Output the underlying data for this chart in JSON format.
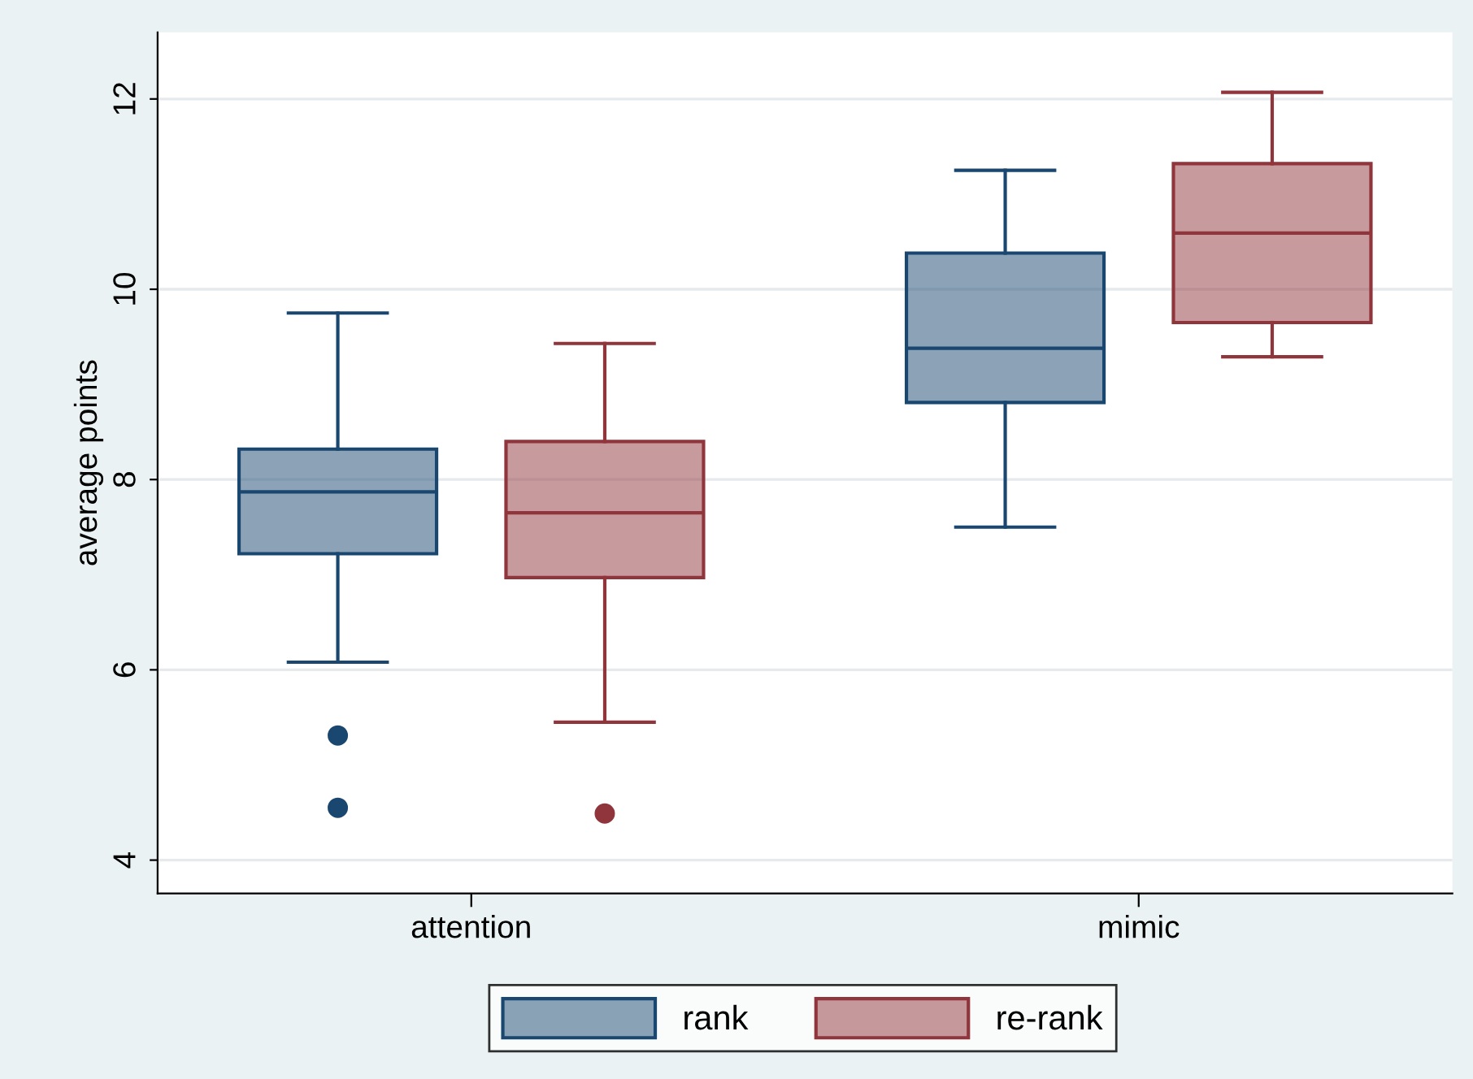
{
  "chart_data": {
    "type": "box",
    "ylabel": "average points",
    "categories": [
      "attention",
      "mimic"
    ],
    "ylim": [
      3.65,
      12.7
    ],
    "yticks": [
      4,
      6,
      8,
      10,
      12
    ],
    "grid": "y",
    "legend": "bottom",
    "marker": "circle",
    "series": [
      {
        "name": "rank",
        "color": "#1a476f",
        "boxes": [
          {
            "low": 6.08,
            "q1": 7.22,
            "median": 7.87,
            "q3": 8.32,
            "high": 9.75,
            "outliers": [
              5.31,
              4.55
            ]
          },
          {
            "low": 7.5,
            "q1": 8.81,
            "median": 9.38,
            "q3": 10.38,
            "high": 11.25
          }
        ]
      },
      {
        "name": "re-rank",
        "color": "#90353b",
        "boxes": [
          {
            "low": 5.45,
            "q1": 6.97,
            "median": 7.65,
            "q3": 8.4,
            "high": 9.43,
            "outliers": [
              4.49
            ]
          },
          {
            "low": 9.29,
            "q1": 9.65,
            "median": 10.59,
            "q3": 11.32,
            "high": 12.07
          }
        ]
      }
    ]
  }
}
